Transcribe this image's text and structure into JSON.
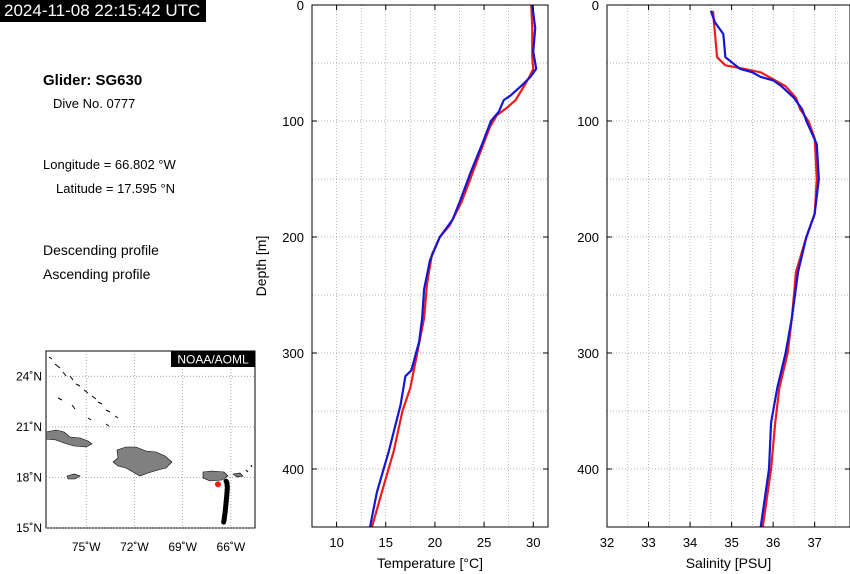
{
  "header": {
    "timestamp": "2024-11-08 22:15:42 UTC",
    "glider": "Glider: SG630",
    "dive": "Dive No. 0777",
    "longitude": "Longitude = 66.802 °W",
    "latitude": "Latitude = 17.595 °N",
    "descending_label": "Descending profile",
    "ascending_label": "Ascending profile"
  },
  "colors": {
    "descending": "#ee1c1c",
    "ascending": "#1515d6",
    "land": "#808080",
    "track": "#000000"
  },
  "map": {
    "badge": "NOAA/AOML",
    "lon_ticks": [
      {
        "value": -75,
        "label": "75˚W"
      },
      {
        "value": -72,
        "label": "72˚W"
      },
      {
        "value": -69,
        "label": "69˚W"
      },
      {
        "value": -66,
        "label": "66˚W"
      }
    ],
    "lat_ticks": [
      {
        "value": 24,
        "label": "24˚N"
      },
      {
        "value": 21,
        "label": "21˚N"
      },
      {
        "value": 18,
        "label": "18˚N"
      },
      {
        "value": 15,
        "label": "15˚N"
      }
    ],
    "lon_range": [
      -77.5,
      -64.5
    ],
    "lat_range": [
      15,
      25.5
    ],
    "track": [
      [
        -66.3,
        17.78
      ],
      [
        -66.25,
        17.7
      ],
      [
        -66.22,
        17.4
      ],
      [
        -66.25,
        17.0
      ],
      [
        -66.3,
        16.5
      ],
      [
        -66.35,
        16.0
      ],
      [
        -66.42,
        15.5
      ],
      [
        -66.45,
        15.35
      ]
    ],
    "glider_position": [
      -66.802,
      17.595
    ]
  },
  "chart_data": [
    {
      "type": "line",
      "xlabel": "Temperature [°C]",
      "ylabel": "Depth [m]",
      "xlim": [
        7.5,
        31.5
      ],
      "ylim": [
        0,
        450
      ],
      "x_ticks": [
        10,
        15,
        20,
        25,
        30
      ],
      "y_ticks": [
        0,
        100,
        200,
        300,
        400
      ],
      "y_inverted": true,
      "grid": true,
      "series": [
        {
          "profile": "descending",
          "points": [
            [
              29.8,
              0
            ],
            [
              29.9,
              20
            ],
            [
              29.9,
              45
            ],
            [
              30.0,
              55
            ],
            [
              29.6,
              62
            ],
            [
              29.2,
              68
            ],
            [
              28.7,
              75
            ],
            [
              28.2,
              82
            ],
            [
              27.4,
              88
            ],
            [
              26.3,
              95
            ],
            [
              25.6,
              105
            ],
            [
              24.7,
              125
            ],
            [
              23.6,
              150
            ],
            [
              22.7,
              170
            ],
            [
              21.5,
              190
            ],
            [
              20.5,
              200
            ],
            [
              19.7,
              215
            ],
            [
              19.2,
              240
            ],
            [
              18.9,
              270
            ],
            [
              18.2,
              300
            ],
            [
              17.5,
              330
            ],
            [
              16.7,
              350
            ],
            [
              15.8,
              385
            ],
            [
              14.6,
              420
            ],
            [
              13.6,
              450
            ]
          ]
        },
        {
          "profile": "ascending",
          "points": [
            [
              29.9,
              0
            ],
            [
              30.2,
              20
            ],
            [
              30.0,
              40
            ],
            [
              30.3,
              55
            ],
            [
              29.7,
              62
            ],
            [
              29.0,
              68
            ],
            [
              27.7,
              78
            ],
            [
              27.0,
              82
            ],
            [
              26.5,
              92
            ],
            [
              25.7,
              100
            ],
            [
              24.8,
              120
            ],
            [
              23.6,
              145
            ],
            [
              22.6,
              168
            ],
            [
              21.8,
              185
            ],
            [
              20.5,
              200
            ],
            [
              19.5,
              220
            ],
            [
              18.9,
              245
            ],
            [
              18.7,
              270
            ],
            [
              18.4,
              290
            ],
            [
              17.6,
              315
            ],
            [
              17.0,
              320
            ],
            [
              16.5,
              345
            ],
            [
              15.3,
              385
            ],
            [
              14.1,
              420
            ],
            [
              13.4,
              450
            ]
          ]
        }
      ]
    },
    {
      "type": "line",
      "xlabel": "Salinity [PSU]",
      "ylabel": "",
      "xlim": [
        32,
        37.85
      ],
      "ylim": [
        0,
        450
      ],
      "x_ticks": [
        32,
        33,
        34,
        35,
        36,
        37
      ],
      "y_ticks": [
        0,
        100,
        200,
        300,
        400
      ],
      "y_inverted": true,
      "grid": true,
      "series": [
        {
          "profile": "descending",
          "points": [
            [
              34.55,
              5
            ],
            [
              34.6,
              25
            ],
            [
              34.65,
              45
            ],
            [
              34.85,
              52
            ],
            [
              35.3,
              55
            ],
            [
              35.7,
              58
            ],
            [
              35.9,
              62
            ],
            [
              36.3,
              70
            ],
            [
              36.55,
              80
            ],
            [
              36.65,
              90
            ],
            [
              36.85,
              100
            ],
            [
              37.0,
              115
            ],
            [
              37.05,
              150
            ],
            [
              37.0,
              180
            ],
            [
              36.8,
              200
            ],
            [
              36.55,
              230
            ],
            [
              36.45,
              270
            ],
            [
              36.35,
              300
            ],
            [
              36.15,
              330
            ],
            [
              36.05,
              360
            ],
            [
              35.95,
              400
            ],
            [
              35.75,
              450
            ]
          ]
        },
        {
          "profile": "ascending",
          "points": [
            [
              34.5,
              5
            ],
            [
              34.6,
              15
            ],
            [
              34.8,
              25
            ],
            [
              34.85,
              45
            ],
            [
              35.2,
              55
            ],
            [
              35.5,
              58
            ],
            [
              35.7,
              62
            ],
            [
              36.0,
              65
            ],
            [
              36.2,
              70
            ],
            [
              36.5,
              80
            ],
            [
              36.7,
              90
            ],
            [
              36.8,
              100
            ],
            [
              37.05,
              120
            ],
            [
              37.1,
              150
            ],
            [
              37.0,
              180
            ],
            [
              36.8,
              200
            ],
            [
              36.6,
              230
            ],
            [
              36.45,
              270
            ],
            [
              36.3,
              300
            ],
            [
              36.1,
              330
            ],
            [
              35.95,
              360
            ],
            [
              35.9,
              400
            ],
            [
              35.7,
              450
            ]
          ]
        }
      ]
    }
  ]
}
